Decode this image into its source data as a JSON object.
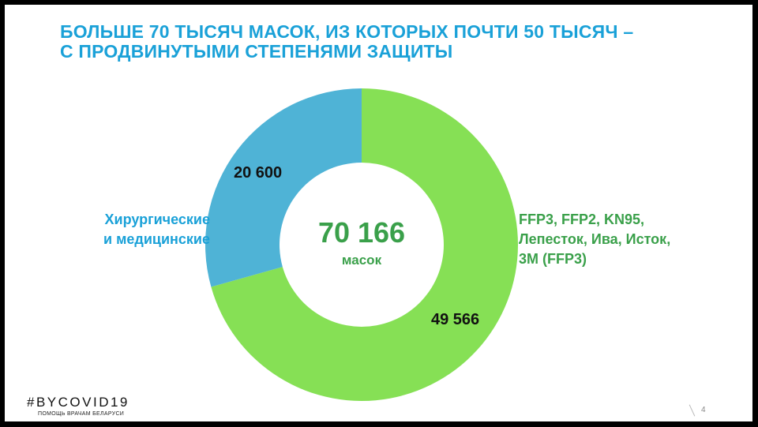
{
  "title": {
    "line1": "БОЛЬШЕ 70 ТЫСЯЧ МАСОК, ИЗ КОТОРЫХ ПОЧТИ 50 ТЫСЯЧ –",
    "line2": "С ПРОДВИНУТЫМИ СТЕПЕНЯМИ ЗАЩИТЫ"
  },
  "chart_data": {
    "type": "pie",
    "donut": true,
    "center_value": "70 166",
    "center_label": "масок",
    "slices": [
      {
        "label_line1": "FFP3, FFP2, KN95,",
        "label_line2": "Лепесток, Ива, Исток,",
        "label_line3": "3M (FFP3)",
        "value": 49566,
        "display": "49 566",
        "color": "#86e055"
      },
      {
        "label_line1": "Хирургические",
        "label_line2": "и медицинские",
        "value": 20600,
        "display": "20 600",
        "color": "#4fb3d6"
      }
    ]
  },
  "footer": {
    "logo": "#BYCOVID19",
    "logo_sub": "ПОМОЩЬ ВРАЧАМ БЕЛАРУСИ",
    "page": "4"
  }
}
